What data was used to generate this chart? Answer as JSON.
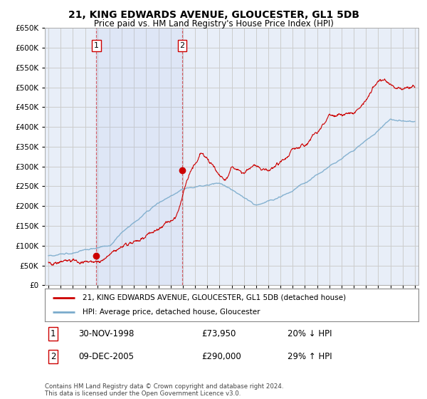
{
  "title": "21, KING EDWARDS AVENUE, GLOUCESTER, GL1 5DB",
  "subtitle": "Price paid vs. HM Land Registry's House Price Index (HPI)",
  "ylim": [
    0,
    650000
  ],
  "xlim": [
    1994.7,
    2025.3
  ],
  "background_color": "#ffffff",
  "grid_color": "#cccccc",
  "plot_bg_color": "#e8eef8",
  "sale1_date": 1998.92,
  "sale1_price": 73950,
  "sale1_label": "1",
  "sale2_date": 2005.94,
  "sale2_price": 290000,
  "sale2_label": "2",
  "legend_line1": "21, KING EDWARDS AVENUE, GLOUCESTER, GL1 5DB (detached house)",
  "legend_line2": "HPI: Average price, detached house, Gloucester",
  "table_row1_num": "1",
  "table_row1_date": "30-NOV-1998",
  "table_row1_price": "£73,950",
  "table_row1_hpi": "20% ↓ HPI",
  "table_row2_num": "2",
  "table_row2_date": "09-DEC-2005",
  "table_row2_price": "£290,000",
  "table_row2_hpi": "29% ↑ HPI",
  "footnote": "Contains HM Land Registry data © Crown copyright and database right 2024.\nThis data is licensed under the Open Government Licence v3.0.",
  "red_color": "#cc0000",
  "blue_color": "#7aabcc"
}
